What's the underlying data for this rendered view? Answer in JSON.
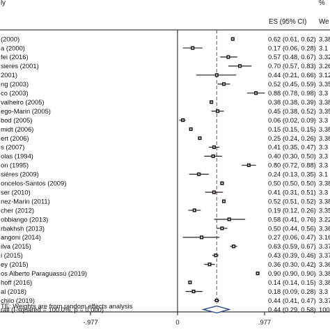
{
  "chart_data": {
    "type": "forest",
    "headers": {
      "study": "ly",
      "es": "ES (95% CI)",
      "weight_pct": "%",
      "weight": "We"
    },
    "xlim": [
      -0.977,
      0.977
    ],
    "xticks": [
      {
        "value": -0.977,
        "label": "-.977"
      },
      {
        "value": 0,
        "label": "0"
      },
      {
        "value": 0.977,
        "label": ".977"
      }
    ],
    "null_line": 0,
    "pooled_line": 0.44,
    "studies": [
      {
        "label": "(2000)",
        "es": 0.62,
        "lo": 0.61,
        "hi": 0.62,
        "ci_text": "0.62 (0.61, 0.62)",
        "weight": "3.38"
      },
      {
        "label": "a (2000)",
        "es": 0.17,
        "lo": 0.06,
        "hi": 0.28,
        "ci_text": "0.17 (0.06, 0.28)",
        "weight": "3.1"
      },
      {
        "label": "fei (2016)",
        "es": 0.57,
        "lo": 0.48,
        "hi": 0.67,
        "ci_text": "0.57 (0.48, 0.67)",
        "weight": "3.32"
      },
      {
        "label": "sieres (2001)",
        "es": 0.7,
        "lo": 0.57,
        "hi": 0.83,
        "ci_text": "0.70 (0.57, 0.83)",
        "weight": "3.26"
      },
      {
        "label": "2001)",
        "es": 0.44,
        "lo": 0.21,
        "hi": 0.66,
        "ci_text": "0.44 (0.21, 0.66)",
        "weight": "3.12"
      },
      {
        "label": "ng (2003)",
        "es": 0.52,
        "lo": 0.45,
        "hi": 0.59,
        "ci_text": "0.52 (0.45, 0.59)",
        "weight": "3.35"
      },
      {
        "label": "co (2003)",
        "es": 0.88,
        "lo": 0.78,
        "hi": 0.98,
        "ci_text": "0.88 (0.78, 0.98)",
        "weight": "3.3"
      },
      {
        "label": "valheiro (2005)",
        "es": 0.38,
        "lo": 0.38,
        "hi": 0.39,
        "ci_text": "0.38 (0.38, 0.39)",
        "weight": "3.38"
      },
      {
        "label": "ego-Marin (2005)",
        "es": 0.45,
        "lo": 0.38,
        "hi": 0.52,
        "ci_text": "0.45 (0.38, 0.52)",
        "weight": "3.35"
      },
      {
        "label": "bod (2005)",
        "es": 0.06,
        "lo": 0.02,
        "hi": 0.09,
        "ci_text": "0.06 (0.02, 0.09)",
        "weight": "3.3"
      },
      {
        "label": "midt (2006)",
        "es": 0.15,
        "lo": 0.15,
        "hi": 0.15,
        "ci_text": "0.15 (0.15, 0.15)",
        "weight": "3.38"
      },
      {
        "label": "ert (2006)",
        "es": 0.25,
        "lo": 0.24,
        "hi": 0.26,
        "ci_text": "0.25 (0.24, 0.26)",
        "weight": "3.38"
      },
      {
        "label": "s (2007)",
        "es": 0.41,
        "lo": 0.35,
        "hi": 0.47,
        "ci_text": "0.41 (0.35, 0.47)",
        "weight": "3.3"
      },
      {
        "label": "olas (1994)",
        "es": 0.4,
        "lo": 0.3,
        "hi": 0.5,
        "ci_text": "0.40 (0.30, 0.50)",
        "weight": "3.3"
      },
      {
        "label": "on (1995)",
        "es": 0.8,
        "lo": 0.72,
        "hi": 0.88,
        "ci_text": "0.80 (0.72, 0.88)",
        "weight": "3.3"
      },
      {
        "label": "sières (2009)",
        "es": 0.24,
        "lo": 0.13,
        "hi": 0.35,
        "ci_text": "0.24 (0.13, 0.35)",
        "weight": "3.1"
      },
      {
        "label": "oncelos-Santos (2009)",
        "es": 0.5,
        "lo": 0.5,
        "hi": 0.5,
        "ci_text": "0.50 (0.50, 0.50)",
        "weight": "3.38"
      },
      {
        "label": "ser (2010)",
        "es": 0.41,
        "lo": 0.31,
        "hi": 0.51,
        "ci_text": "0.41 (0.31, 0.51)",
        "weight": "3.3"
      },
      {
        "label": "nez-Marin (2011)",
        "es": 0.52,
        "lo": 0.51,
        "hi": 0.52,
        "ci_text": "0.52 (0.51, 0.52)",
        "weight": "3.38"
      },
      {
        "label": "cher (2012)",
        "es": 0.19,
        "lo": 0.12,
        "hi": 0.26,
        "ci_text": "0.19 (0.12, 0.26)",
        "weight": "3.35"
      },
      {
        "label": "obbiango (2013)",
        "es": 0.58,
        "lo": 0.41,
        "hi": 0.76,
        "ci_text": "0.58 (0.41, 0.76)",
        "weight": "3.22"
      },
      {
        "label": "rbakhsh (2013)",
        "es": 0.5,
        "lo": 0.44,
        "hi": 0.56,
        "ci_text": "0.50 (0.44, 0.56)",
        "weight": "3.36"
      },
      {
        "label": "angoni (2014)",
        "es": 0.27,
        "lo": 0.06,
        "hi": 0.47,
        "ci_text": "0.27 (0.06, 0.47)",
        "weight": "3.16"
      },
      {
        "label": "ilva (2015)",
        "es": 0.63,
        "lo": 0.59,
        "hi": 0.67,
        "ci_text": "0.63 (0.59, 0.67)",
        "weight": "3.37"
      },
      {
        "label": "i (2015)",
        "es": 0.43,
        "lo": 0.39,
        "hi": 0.46,
        "ci_text": "0.43 (0.39, 0.46)",
        "weight": "3.37"
      },
      {
        "label": "ey (2015)",
        "es": 0.36,
        "lo": 0.3,
        "hi": 0.42,
        "ci_text": "0.36 (0.30, 0.42)",
        "weight": "3.36"
      },
      {
        "label": "os Alberto Paraguassú (2019)",
        "es": 0.9,
        "lo": 0.9,
        "hi": 0.9,
        "ci_text": "0.90 (0.90, 0.90)",
        "weight": "3.38"
      },
      {
        "label": "hoff (2016)",
        "es": 0.14,
        "lo": 0.14,
        "hi": 0.15,
        "ci_text": "0.14 (0.14, 0.15)",
        "weight": "3.38"
      },
      {
        "label": "al (2018)",
        "es": 0.18,
        "lo": 0.09,
        "hi": 0.28,
        "ci_text": "0.18 (0.09, 0.28)",
        "weight": "3.3"
      },
      {
        "label": "chilo (2019)",
        "es": 0.44,
        "lo": 0.41,
        "hi": 0.47,
        "ci_text": "0.44 (0.41, 0.47)",
        "weight": "3.37"
      }
    ],
    "overall": {
      "label": "rall  (I-squared = 100.0%, p = 0.000)",
      "es": 0.44,
      "lo": 0.29,
      "hi": 0.58,
      "ci_text": "0.44 (0.29, 0.58)",
      "weight": "100"
    },
    "footnote": "TE: Weights are from random effects analysis",
    "colors": {
      "text": "#111111",
      "marker": "#222222",
      "pooled_line": "#b0303a",
      "diamond": "#1f3d8c"
    }
  }
}
